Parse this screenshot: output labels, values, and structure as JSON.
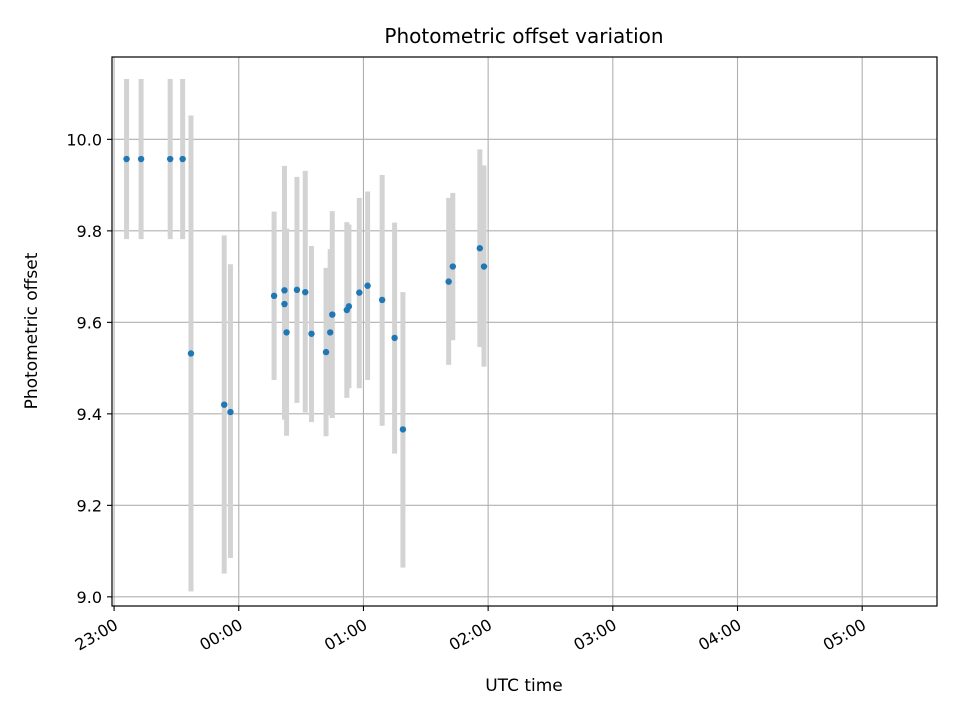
{
  "chart_data": {
    "type": "scatter",
    "title": "Photometric offset variation",
    "xlabel": "UTC time",
    "ylabel": "Photometric offset",
    "x_unit": "UTC hh:mm (times after midnight are the following day)",
    "xlim": [
      "22:59",
      "05:36"
    ],
    "ylim": [
      8.98,
      10.18
    ],
    "x_ticks": [
      "23:00",
      "00:00",
      "01:00",
      "02:00",
      "03:00",
      "04:00",
      "05:00"
    ],
    "y_ticks": [
      "9.0",
      "9.2",
      "9.4",
      "9.6",
      "9.8",
      "10.0"
    ],
    "grid": true,
    "colors": {
      "point": "#1f77b4",
      "errorbar": "#d3d3d3",
      "grid": "#b0b0b0"
    },
    "points": [
      {
        "x": "23:06",
        "y": 9.957,
        "ylow": 9.782,
        "yhigh": 10.132
      },
      {
        "x": "23:13",
        "y": 9.957,
        "ylow": 9.782,
        "yhigh": 10.132
      },
      {
        "x": "23:27",
        "y": 9.957,
        "ylow": 9.782,
        "yhigh": 10.132
      },
      {
        "x": "23:33",
        "y": 9.957,
        "ylow": 9.782,
        "yhigh": 10.132
      },
      {
        "x": "23:37",
        "y": 9.532,
        "ylow": 9.012,
        "yhigh": 10.052
      },
      {
        "x": "23:53",
        "y": 9.42,
        "ylow": 9.051,
        "yhigh": 9.79
      },
      {
        "x": "23:56",
        "y": 9.404,
        "ylow": 9.085,
        "yhigh": 9.727
      },
      {
        "x": "00:17",
        "y": 9.658,
        "ylow": 9.474,
        "yhigh": 9.842
      },
      {
        "x": "00:22",
        "y": 9.67,
        "ylow": 9.393,
        "yhigh": 9.942
      },
      {
        "x": "00:22",
        "y": 9.64,
        "ylow": 9.387,
        "yhigh": 9.893
      },
      {
        "x": "00:23",
        "y": 9.578,
        "ylow": 9.352,
        "yhigh": 9.805
      },
      {
        "x": "00:28",
        "y": 9.671,
        "ylow": 9.424,
        "yhigh": 9.918
      },
      {
        "x": "00:32",
        "y": 9.666,
        "ylow": 9.403,
        "yhigh": 9.931
      },
      {
        "x": "00:35",
        "y": 9.575,
        "ylow": 9.382,
        "yhigh": 9.767
      },
      {
        "x": "00:42",
        "y": 9.535,
        "ylow": 9.351,
        "yhigh": 9.719
      },
      {
        "x": "00:44",
        "y": 9.578,
        "ylow": 9.397,
        "yhigh": 9.76
      },
      {
        "x": "00:45",
        "y": 9.617,
        "ylow": 9.391,
        "yhigh": 9.843
      },
      {
        "x": "00:52",
        "y": 9.627,
        "ylow": 9.435,
        "yhigh": 9.819
      },
      {
        "x": "00:53",
        "y": 9.635,
        "ylow": 9.456,
        "yhigh": 9.814
      },
      {
        "x": "00:58",
        "y": 9.665,
        "ylow": 9.456,
        "yhigh": 9.872
      },
      {
        "x": "01:02",
        "y": 9.68,
        "ylow": 9.474,
        "yhigh": 9.886
      },
      {
        "x": "01:09",
        "y": 9.649,
        "ylow": 9.374,
        "yhigh": 9.922
      },
      {
        "x": "01:15",
        "y": 9.566,
        "ylow": 9.313,
        "yhigh": 9.818
      },
      {
        "x": "01:19",
        "y": 9.366,
        "ylow": 9.064,
        "yhigh": 9.666
      },
      {
        "x": "01:41",
        "y": 9.689,
        "ylow": 9.507,
        "yhigh": 9.872
      },
      {
        "x": "01:43",
        "y": 9.722,
        "ylow": 9.561,
        "yhigh": 9.883
      },
      {
        "x": "01:56",
        "y": 9.762,
        "ylow": 9.546,
        "yhigh": 9.978
      },
      {
        "x": "01:58",
        "y": 9.722,
        "ylow": 9.503,
        "yhigh": 9.943
      }
    ]
  }
}
